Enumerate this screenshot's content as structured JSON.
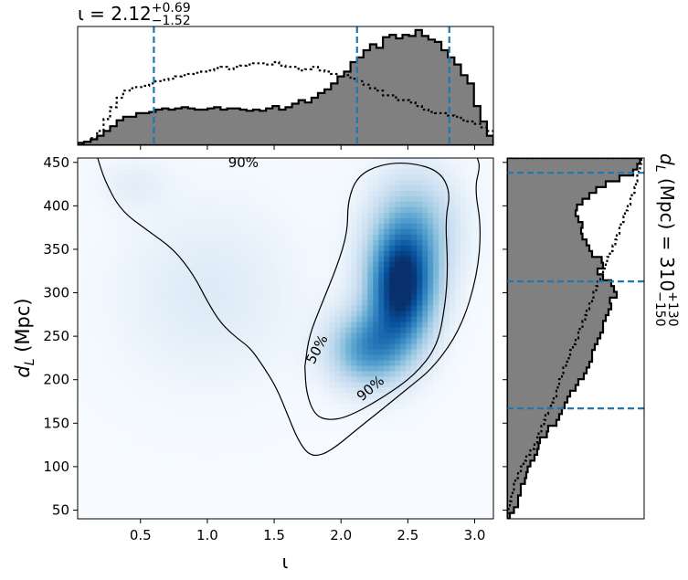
{
  "chart_data": {
    "type": "heatmap",
    "top_title": {
      "prefix": "ι = 2.12",
      "sup": "+0.69",
      "sub": "−1.52"
    },
    "right_title": {
      "prefix": "d",
      "sub_L": "L",
      "mid": " (Mpc) = 310",
      "sup": "+130",
      "sub": "−150"
    },
    "xlabel": "ι",
    "ylabel": {
      "prefix": "d",
      "sub": "L",
      "suffix": " (Mpc)"
    },
    "xlim": [
      0.03,
      3.14
    ],
    "ylim": [
      40,
      455
    ],
    "x_ticks": [
      {
        "v": 0.5,
        "label": "0.5"
      },
      {
        "v": 1.0,
        "label": "1.0"
      },
      {
        "v": 1.5,
        "label": "1.5"
      },
      {
        "v": 2.0,
        "label": "2.0"
      },
      {
        "v": 2.5,
        "label": "2.5"
      },
      {
        "v": 3.0,
        "label": "3.0"
      }
    ],
    "y_ticks": [
      {
        "v": 50,
        "label": "50"
      },
      {
        "v": 100,
        "label": "100"
      },
      {
        "v": 150,
        "label": "150"
      },
      {
        "v": 200,
        "label": "200"
      },
      {
        "v": 250,
        "label": "250"
      },
      {
        "v": 300,
        "label": "300"
      },
      {
        "v": 350,
        "label": "350"
      },
      {
        "v": 400,
        "label": "400"
      },
      {
        "v": 450,
        "label": "450"
      }
    ],
    "colormap": "Blues",
    "density_blobs": [
      {
        "x": 2.45,
        "y": 305,
        "sx": 0.17,
        "sy": 45,
        "w": 1.0
      },
      {
        "x": 2.2,
        "y": 235,
        "sx": 0.2,
        "sy": 30,
        "w": 0.55
      },
      {
        "x": 2.55,
        "y": 375,
        "sx": 0.22,
        "sy": 45,
        "w": 0.35
      },
      {
        "x": 1.0,
        "y": 300,
        "sx": 0.45,
        "sy": 70,
        "w": 0.1
      },
      {
        "x": 0.45,
        "y": 425,
        "sx": 0.18,
        "sy": 20,
        "w": 0.07
      }
    ],
    "contours": [
      {
        "label": "90%",
        "label_positions": [
          {
            "x": 1.27,
            "y": 450,
            "angle": 0
          },
          {
            "x": 2.22,
            "y": 190,
            "angle": -40
          }
        ],
        "points": [
          [
            0.18,
            455
          ],
          [
            0.23,
            430
          ],
          [
            0.35,
            395
          ],
          [
            0.55,
            372
          ],
          [
            0.75,
            350
          ],
          [
            0.9,
            320
          ],
          [
            1.0,
            290
          ],
          [
            1.1,
            265
          ],
          [
            1.22,
            248
          ],
          [
            1.32,
            237
          ],
          [
            1.42,
            215
          ],
          [
            1.52,
            190
          ],
          [
            1.6,
            160
          ],
          [
            1.68,
            130
          ],
          [
            1.76,
            113
          ],
          [
            1.86,
            113
          ],
          [
            1.98,
            125
          ],
          [
            2.12,
            143
          ],
          [
            2.3,
            165
          ],
          [
            2.5,
            190
          ],
          [
            2.7,
            215
          ],
          [
            2.9,
            260
          ],
          [
            3.02,
            320
          ],
          [
            3.05,
            375
          ],
          [
            3.0,
            420
          ],
          [
            3.04,
            445
          ],
          [
            3.02,
            455
          ]
        ]
      },
      {
        "label": "50%",
        "label_positions": [
          {
            "x": 1.82,
            "y": 235,
            "angle": -62
          }
        ],
        "points": [
          [
            1.73,
            215
          ],
          [
            1.74,
            185
          ],
          [
            1.8,
            160
          ],
          [
            1.9,
            153
          ],
          [
            2.05,
            157
          ],
          [
            2.3,
            178
          ],
          [
            2.55,
            205
          ],
          [
            2.72,
            238
          ],
          [
            2.78,
            285
          ],
          [
            2.8,
            330
          ],
          [
            2.78,
            385
          ],
          [
            2.82,
            415
          ],
          [
            2.74,
            440
          ],
          [
            2.52,
            450
          ],
          [
            2.3,
            448
          ],
          [
            2.12,
            434
          ],
          [
            2.05,
            405
          ],
          [
            2.05,
            370
          ],
          [
            1.97,
            330
          ],
          [
            1.85,
            285
          ],
          [
            1.76,
            250
          ],
          [
            1.73,
            215
          ]
        ]
      }
    ],
    "x_marginal": {
      "bins_from": 0.03,
      "bins_to": 3.14,
      "filled": [
        0.02,
        0.03,
        0.05,
        0.08,
        0.12,
        0.16,
        0.21,
        0.24,
        0.24,
        0.27,
        0.27,
        0.28,
        0.3,
        0.31,
        0.3,
        0.31,
        0.32,
        0.31,
        0.3,
        0.3,
        0.31,
        0.32,
        0.3,
        0.31,
        0.31,
        0.3,
        0.29,
        0.3,
        0.29,
        0.31,
        0.33,
        0.3,
        0.32,
        0.35,
        0.38,
        0.36,
        0.4,
        0.44,
        0.47,
        0.52,
        0.58,
        0.62,
        0.7,
        0.74,
        0.8,
        0.85,
        0.82,
        0.91,
        0.93,
        0.9,
        0.93,
        0.92,
        0.97,
        0.92,
        0.89,
        0.87,
        0.8,
        0.74,
        0.68,
        0.59,
        0.52,
        0.33,
        0.2,
        0.08
      ],
      "dotted": [
        0.01,
        0.03,
        0.06,
        0.12,
        0.22,
        0.32,
        0.4,
        0.46,
        0.48,
        0.49,
        0.5,
        0.52,
        0.54,
        0.55,
        0.56,
        0.58,
        0.59,
        0.6,
        0.61,
        0.62,
        0.63,
        0.65,
        0.66,
        0.64,
        0.66,
        0.67,
        0.68,
        0.69,
        0.69,
        0.68,
        0.7,
        0.67,
        0.66,
        0.66,
        0.63,
        0.64,
        0.66,
        0.63,
        0.62,
        0.6,
        0.58,
        0.59,
        0.56,
        0.54,
        0.51,
        0.48,
        0.46,
        0.42,
        0.42,
        0.38,
        0.38,
        0.36,
        0.33,
        0.3,
        0.28,
        0.27,
        0.27,
        0.25,
        0.24,
        0.21,
        0.2,
        0.18,
        0.15,
        0.12
      ],
      "lines": [
        0.6,
        2.12,
        2.81
      ]
    },
    "y_marginal": {
      "bins_from": 40,
      "bins_to": 455,
      "filled": [
        0.02,
        0.05,
        0.08,
        0.08,
        0.1,
        0.1,
        0.13,
        0.14,
        0.15,
        0.17,
        0.2,
        0.22,
        0.23,
        0.24,
        0.29,
        0.3,
        0.36,
        0.38,
        0.4,
        0.42,
        0.44,
        0.46,
        0.5,
        0.52,
        0.56,
        0.58,
        0.6,
        0.62,
        0.62,
        0.64,
        0.66,
        0.68,
        0.7,
        0.7,
        0.72,
        0.74,
        0.76,
        0.75,
        0.8,
        0.78,
        0.76,
        0.7,
        0.66,
        0.7,
        0.69,
        0.62,
        0.6,
        0.58,
        0.55,
        0.54,
        0.55,
        0.52,
        0.5,
        0.51,
        0.55,
        0.6,
        0.65,
        0.72,
        0.82,
        0.92,
        0.95,
        0.97
      ],
      "dotted": [
        0.0,
        0.01,
        0.02,
        0.03,
        0.04,
        0.05,
        0.06,
        0.08,
        0.1,
        0.12,
        0.14,
        0.17,
        0.2,
        0.22,
        0.23,
        0.25,
        0.27,
        0.28,
        0.3,
        0.32,
        0.34,
        0.36,
        0.37,
        0.38,
        0.4,
        0.41,
        0.43,
        0.45,
        0.46,
        0.48,
        0.5,
        0.52,
        0.53,
        0.55,
        0.57,
        0.58,
        0.6,
        0.62,
        0.63,
        0.65,
        0.66,
        0.68,
        0.7,
        0.72,
        0.73,
        0.75,
        0.77,
        0.79,
        0.8,
        0.82,
        0.83,
        0.85,
        0.86,
        0.88,
        0.9,
        0.91,
        0.93,
        0.94,
        0.95,
        0.96,
        0.97,
        0.98
      ],
      "lines": [
        167,
        313,
        438
      ]
    },
    "colors": {
      "hist_fill": "#808080",
      "hist_edge": "#000000",
      "quantile_line": "#1f77b4",
      "contour": "#000000"
    }
  }
}
